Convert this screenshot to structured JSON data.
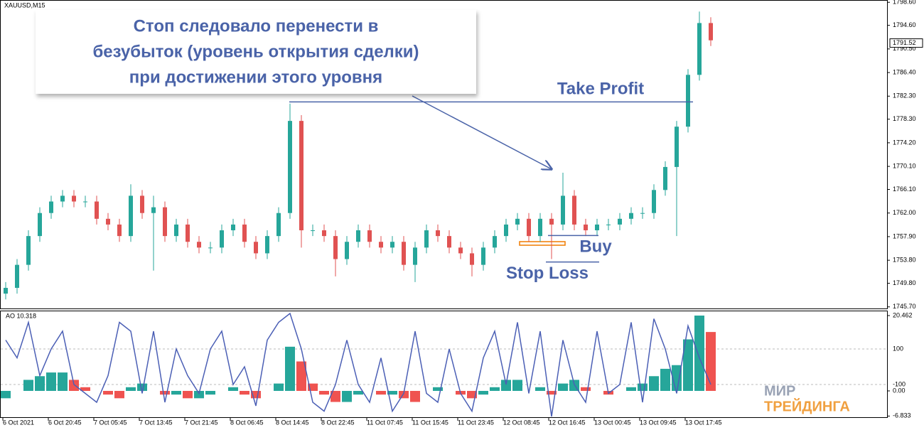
{
  "chart_data": [
    {
      "type": "candlestick",
      "title": "XAUUSD,M15",
      "last_price": 1791.52,
      "up_color": "#26a69a",
      "down_color": "#e05252",
      "categories": [
        "6 Oct 2021",
        null,
        null,
        null,
        "6 Oct 20:45",
        null,
        null,
        null,
        "7 Oct 05:45",
        null,
        null,
        null,
        "7 Oct 13:45",
        null,
        null,
        null,
        "7 Oct 21:45",
        null,
        null,
        null,
        "8 Oct 06:45",
        null,
        null,
        null,
        "8 Oct 14:45",
        null,
        null,
        null,
        "8 Oct 22:45",
        null,
        null,
        null,
        "11 Oct 07:45",
        null,
        null,
        null,
        "11 Oct 15:45",
        null,
        null,
        null,
        "11 Oct 23:45",
        null,
        null,
        null,
        "12 Oct 08:45",
        null,
        null,
        null,
        "12 Oct 16:45",
        null,
        null,
        null,
        "13 Oct 00:45",
        null,
        null,
        null,
        "13 Oct 09:45",
        null,
        null,
        null,
        "13 Oct 17:45",
        null,
        null
      ],
      "open": [
        1748,
        1749,
        1753,
        1758,
        1762,
        1764,
        1765,
        1764,
        1764,
        1761,
        1760,
        1758,
        1765,
        1762,
        1763,
        1758,
        1760,
        1757,
        1756,
        1756,
        1759,
        1760,
        1757,
        1755,
        1758,
        1762,
        1778,
        1759,
        1759,
        1758,
        1754,
        1757,
        1759,
        1757,
        1756,
        1757,
        1753,
        1756,
        1759,
        1758,
        1756,
        1755,
        1753,
        1756,
        1758,
        1760,
        1761,
        1758,
        1761,
        1760,
        1765,
        1760,
        1759,
        1760,
        1760,
        1761,
        1762,
        1762,
        1766,
        1770,
        1777,
        1786,
        1795
      ],
      "high": [
        1750,
        1754,
        1759,
        1763,
        1765,
        1766,
        1766,
        1765,
        1765,
        1762,
        1761,
        1767,
        1766,
        1765,
        1764,
        1761,
        1761,
        1758,
        1757,
        1760,
        1761,
        1761,
        1758,
        1759,
        1763,
        1781,
        1779,
        1760,
        1760,
        1759,
        1758,
        1760,
        1760,
        1758,
        1758,
        1758,
        1757,
        1760,
        1760,
        1759,
        1757,
        1756,
        1757,
        1759,
        1761,
        1762,
        1762,
        1762,
        1762,
        1769,
        1766,
        1761,
        1761,
        1761,
        1762,
        1763,
        1763,
        1767,
        1771,
        1778,
        1787,
        1797,
        1796
      ],
      "low": [
        1747,
        1748,
        1752,
        1757,
        1761,
        1763,
        1763,
        1763,
        1760,
        1759,
        1757,
        1757,
        1761,
        1752,
        1757,
        1757,
        1756,
        1755,
        1755,
        1755,
        1758,
        1756,
        1754,
        1754,
        1757,
        1761,
        1756,
        1758,
        1757,
        1751,
        1753,
        1756,
        1756,
        1755,
        1755,
        1752,
        1750,
        1755,
        1757,
        1755,
        1754,
        1751,
        1752,
        1755,
        1757,
        1759,
        1757,
        1757,
        1754,
        1759,
        1759,
        1758,
        1758,
        1759,
        1759,
        1760,
        1761,
        1761,
        1765,
        1758,
        1776,
        1785,
        1791
      ],
      "close": [
        1749,
        1753,
        1758,
        1762,
        1764,
        1765,
        1764,
        1764,
        1761,
        1760,
        1758,
        1765,
        1762,
        1763,
        1758,
        1760,
        1757,
        1756,
        1756,
        1759,
        1760,
        1757,
        1755,
        1758,
        1762,
        1778,
        1759,
        1759,
        1758,
        1754,
        1757,
        1759,
        1757,
        1756,
        1757,
        1753,
        1756,
        1759,
        1758,
        1756,
        1755,
        1753,
        1756,
        1758,
        1760,
        1761,
        1758,
        1761,
        1760,
        1765,
        1760,
        1759,
        1760,
        1760,
        1761,
        1762,
        1762,
        1766,
        1770,
        1777,
        1786,
        1795,
        1792
      ],
      "ylim": [
        1745.3,
        1799.0
      ],
      "yticks": [
        {
          "value": 1798.6,
          "label": "1798.60"
        },
        {
          "value": 1794.6,
          "label": "1794.60"
        },
        {
          "value": 1790.5,
          "label": "1790.50"
        },
        {
          "value": 1786.4,
          "label": "1786.40"
        },
        {
          "value": 1782.3,
          "label": "1782.30"
        },
        {
          "value": 1778.3,
          "label": "1778.30"
        },
        {
          "value": 1774.2,
          "label": "1774.20"
        },
        {
          "value": 1770.1,
          "label": "1770.10"
        },
        {
          "value": 1766.1,
          "label": "1766.10"
        },
        {
          "value": 1762,
          "label": "1762.00"
        },
        {
          "value": 1757.9,
          "label": "1757.90"
        },
        {
          "value": 1753.8,
          "label": "1753.80"
        },
        {
          "value": 1749.8,
          "label": "1749.80"
        },
        {
          "value": 1745.7,
          "label": "1745.70"
        }
      ],
      "callout": [
        "Стоп следовало перенести в",
        "безубыток (уровень открытия сделки)",
        "при достижении этого уровня"
      ],
      "annotations": [
        {
          "text": "Take Profit",
          "value": 1781.3
        },
        {
          "text": "Buy",
          "value": 1758.1
        },
        {
          "text": "Stop Loss",
          "value": 1753.5
        }
      ]
    },
    {
      "type": "bar",
      "title": "AO 10.318",
      "up_color": "#26a69a",
      "down_color": "#ef5350",
      "series": [
        {
          "values": [
            -2,
            0,
            3,
            4,
            5,
            5,
            3,
            1,
            0,
            -1,
            -2,
            1,
            2,
            0,
            -1,
            -1,
            -2,
            -2,
            -1,
            0,
            1,
            -1,
            -2,
            0,
            2,
            12,
            8,
            2,
            -1,
            -3,
            -3,
            -1,
            0,
            -1,
            -1,
            -2,
            -3,
            0,
            1,
            0,
            -1,
            -2,
            -1,
            1,
            3,
            3,
            0,
            1,
            -1,
            2,
            3,
            1,
            0,
            -1,
            0,
            1,
            2,
            4,
            6,
            7,
            14,
            20.462,
            16
          ]
        },
        {
          "type": "line",
          "axis": "y2",
          "color": "#4b5fb5",
          "values": [
            150,
            50,
            250,
            -50,
            100,
            200,
            -100,
            -150,
            -200,
            -50,
            250,
            200,
            -150,
            200,
            -200,
            100,
            -50,
            -150,
            100,
            200,
            -100,
            0,
            -220,
            150,
            250,
            300,
            100,
            -200,
            -250,
            -100,
            150,
            -100,
            -200,
            50,
            -250,
            -150,
            200,
            -150,
            -200,
            100,
            -150,
            -250,
            50,
            200,
            -100,
            250,
            -150,
            200,
            -280,
            150,
            -100,
            -200,
            200,
            -150,
            -100,
            250,
            -200,
            270,
            100,
            -150,
            230,
            50,
            -100
          ]
        }
      ],
      "ylim": [
        -7.34,
        21.62
      ],
      "yticks": [
        20.462,
        {
          "value": 0,
          "label": "0.00"
        },
        -6.833
      ],
      "y2lim": [
        -288,
        312
      ],
      "y2ticks": [
        100,
        -100
      ]
    }
  ],
  "watermark": [
    "МИР",
    "ТРЕЙДИНГА"
  ]
}
